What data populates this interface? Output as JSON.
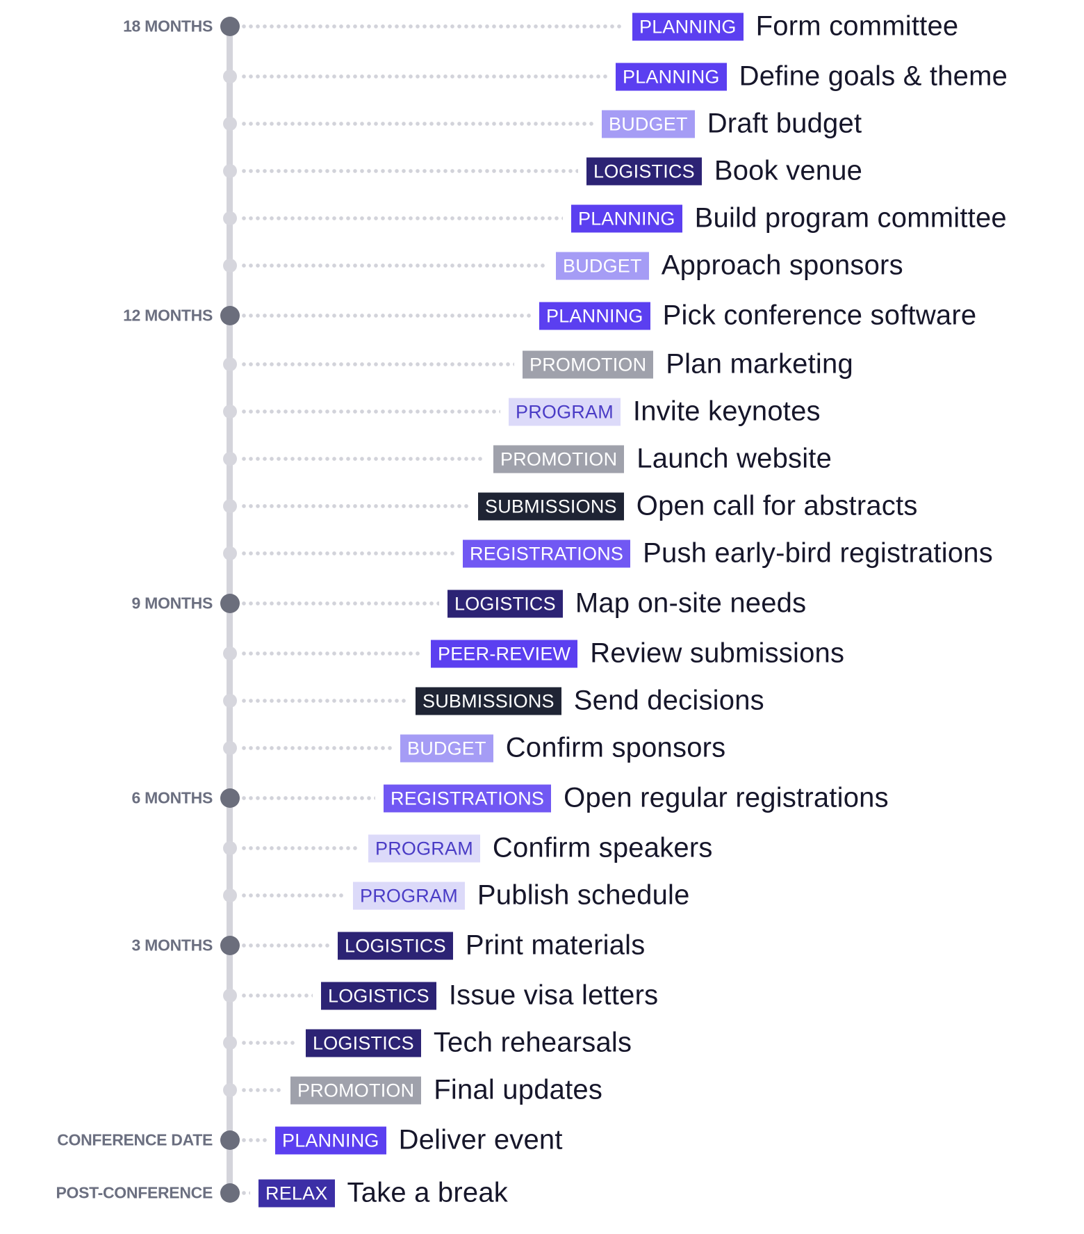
{
  "colors": {
    "PLANNING": {
      "bg": "#5b3ff0",
      "fg": "#ffffff"
    },
    "BUDGET": {
      "bg": "#a59cf5",
      "fg": "#ffffff"
    },
    "LOGISTICS": {
      "bg": "#2c2374",
      "fg": "#ffffff"
    },
    "PROMOTION": {
      "bg": "#9fa1ab",
      "fg": "#ffffff"
    },
    "PROGRAM": {
      "bg": "#dcdaf9",
      "fg": "#4a3cc6"
    },
    "SUBMISSIONS": {
      "bg": "#1f2434",
      "fg": "#ffffff"
    },
    "REGISTRATIONS": {
      "bg": "#7158f3",
      "fg": "#ffffff"
    },
    "PEER-REVIEW": {
      "bg": "#5b3ff0",
      "fg": "#ffffff"
    },
    "RELAX": {
      "bg": "#3c2fa6",
      "fg": "#ffffff"
    }
  },
  "timeline": [
    {
      "milestone": "18 MONTHS",
      "category": "PLANNING",
      "task": "Form committee"
    },
    {
      "milestone": "",
      "category": "PLANNING",
      "task": "Define goals & theme"
    },
    {
      "milestone": "",
      "category": "BUDGET",
      "task": "Draft budget"
    },
    {
      "milestone": "",
      "category": "LOGISTICS",
      "task": "Book venue"
    },
    {
      "milestone": "",
      "category": "PLANNING",
      "task": "Build program committee"
    },
    {
      "milestone": "",
      "category": "BUDGET",
      "task": "Approach sponsors"
    },
    {
      "milestone": "12 MONTHS",
      "category": "PLANNING",
      "task": "Pick conference software"
    },
    {
      "milestone": "",
      "category": "PROMOTION",
      "task": "Plan marketing"
    },
    {
      "milestone": "",
      "category": "PROGRAM",
      "task": "Invite keynotes"
    },
    {
      "milestone": "",
      "category": "PROMOTION",
      "task": "Launch website"
    },
    {
      "milestone": "",
      "category": "SUBMISSIONS",
      "task": "Open call for abstracts"
    },
    {
      "milestone": "",
      "category": "REGISTRATIONS",
      "task": "Push early-bird registrations"
    },
    {
      "milestone": "9 MONTHS",
      "category": "LOGISTICS",
      "task": "Map on-site needs"
    },
    {
      "milestone": "",
      "category": "PEER-REVIEW",
      "task": "Review submissions"
    },
    {
      "milestone": "",
      "category": "SUBMISSIONS",
      "task": "Send decisions"
    },
    {
      "milestone": "",
      "category": "BUDGET",
      "task": "Confirm sponsors"
    },
    {
      "milestone": "6 MONTHS",
      "category": "REGISTRATIONS",
      "task": "Open regular registrations"
    },
    {
      "milestone": "",
      "category": "PROGRAM",
      "task": "Confirm speakers"
    },
    {
      "milestone": "",
      "category": "PROGRAM",
      "task": "Publish schedule"
    },
    {
      "milestone": "3 MONTHS",
      "category": "LOGISTICS",
      "task": "Print materials"
    },
    {
      "milestone": "",
      "category": "LOGISTICS",
      "task": "Issue visa letters"
    },
    {
      "milestone": "",
      "category": "LOGISTICS",
      "task": "Tech rehearsals"
    },
    {
      "milestone": "",
      "category": "PROMOTION",
      "task": "Final updates"
    },
    {
      "milestone": "CONFERENCE DATE",
      "category": "PLANNING",
      "task": "Deliver event"
    },
    {
      "milestone": "POST-CONFERENCE",
      "category": "RELAX",
      "task": "Take a break"
    }
  ]
}
